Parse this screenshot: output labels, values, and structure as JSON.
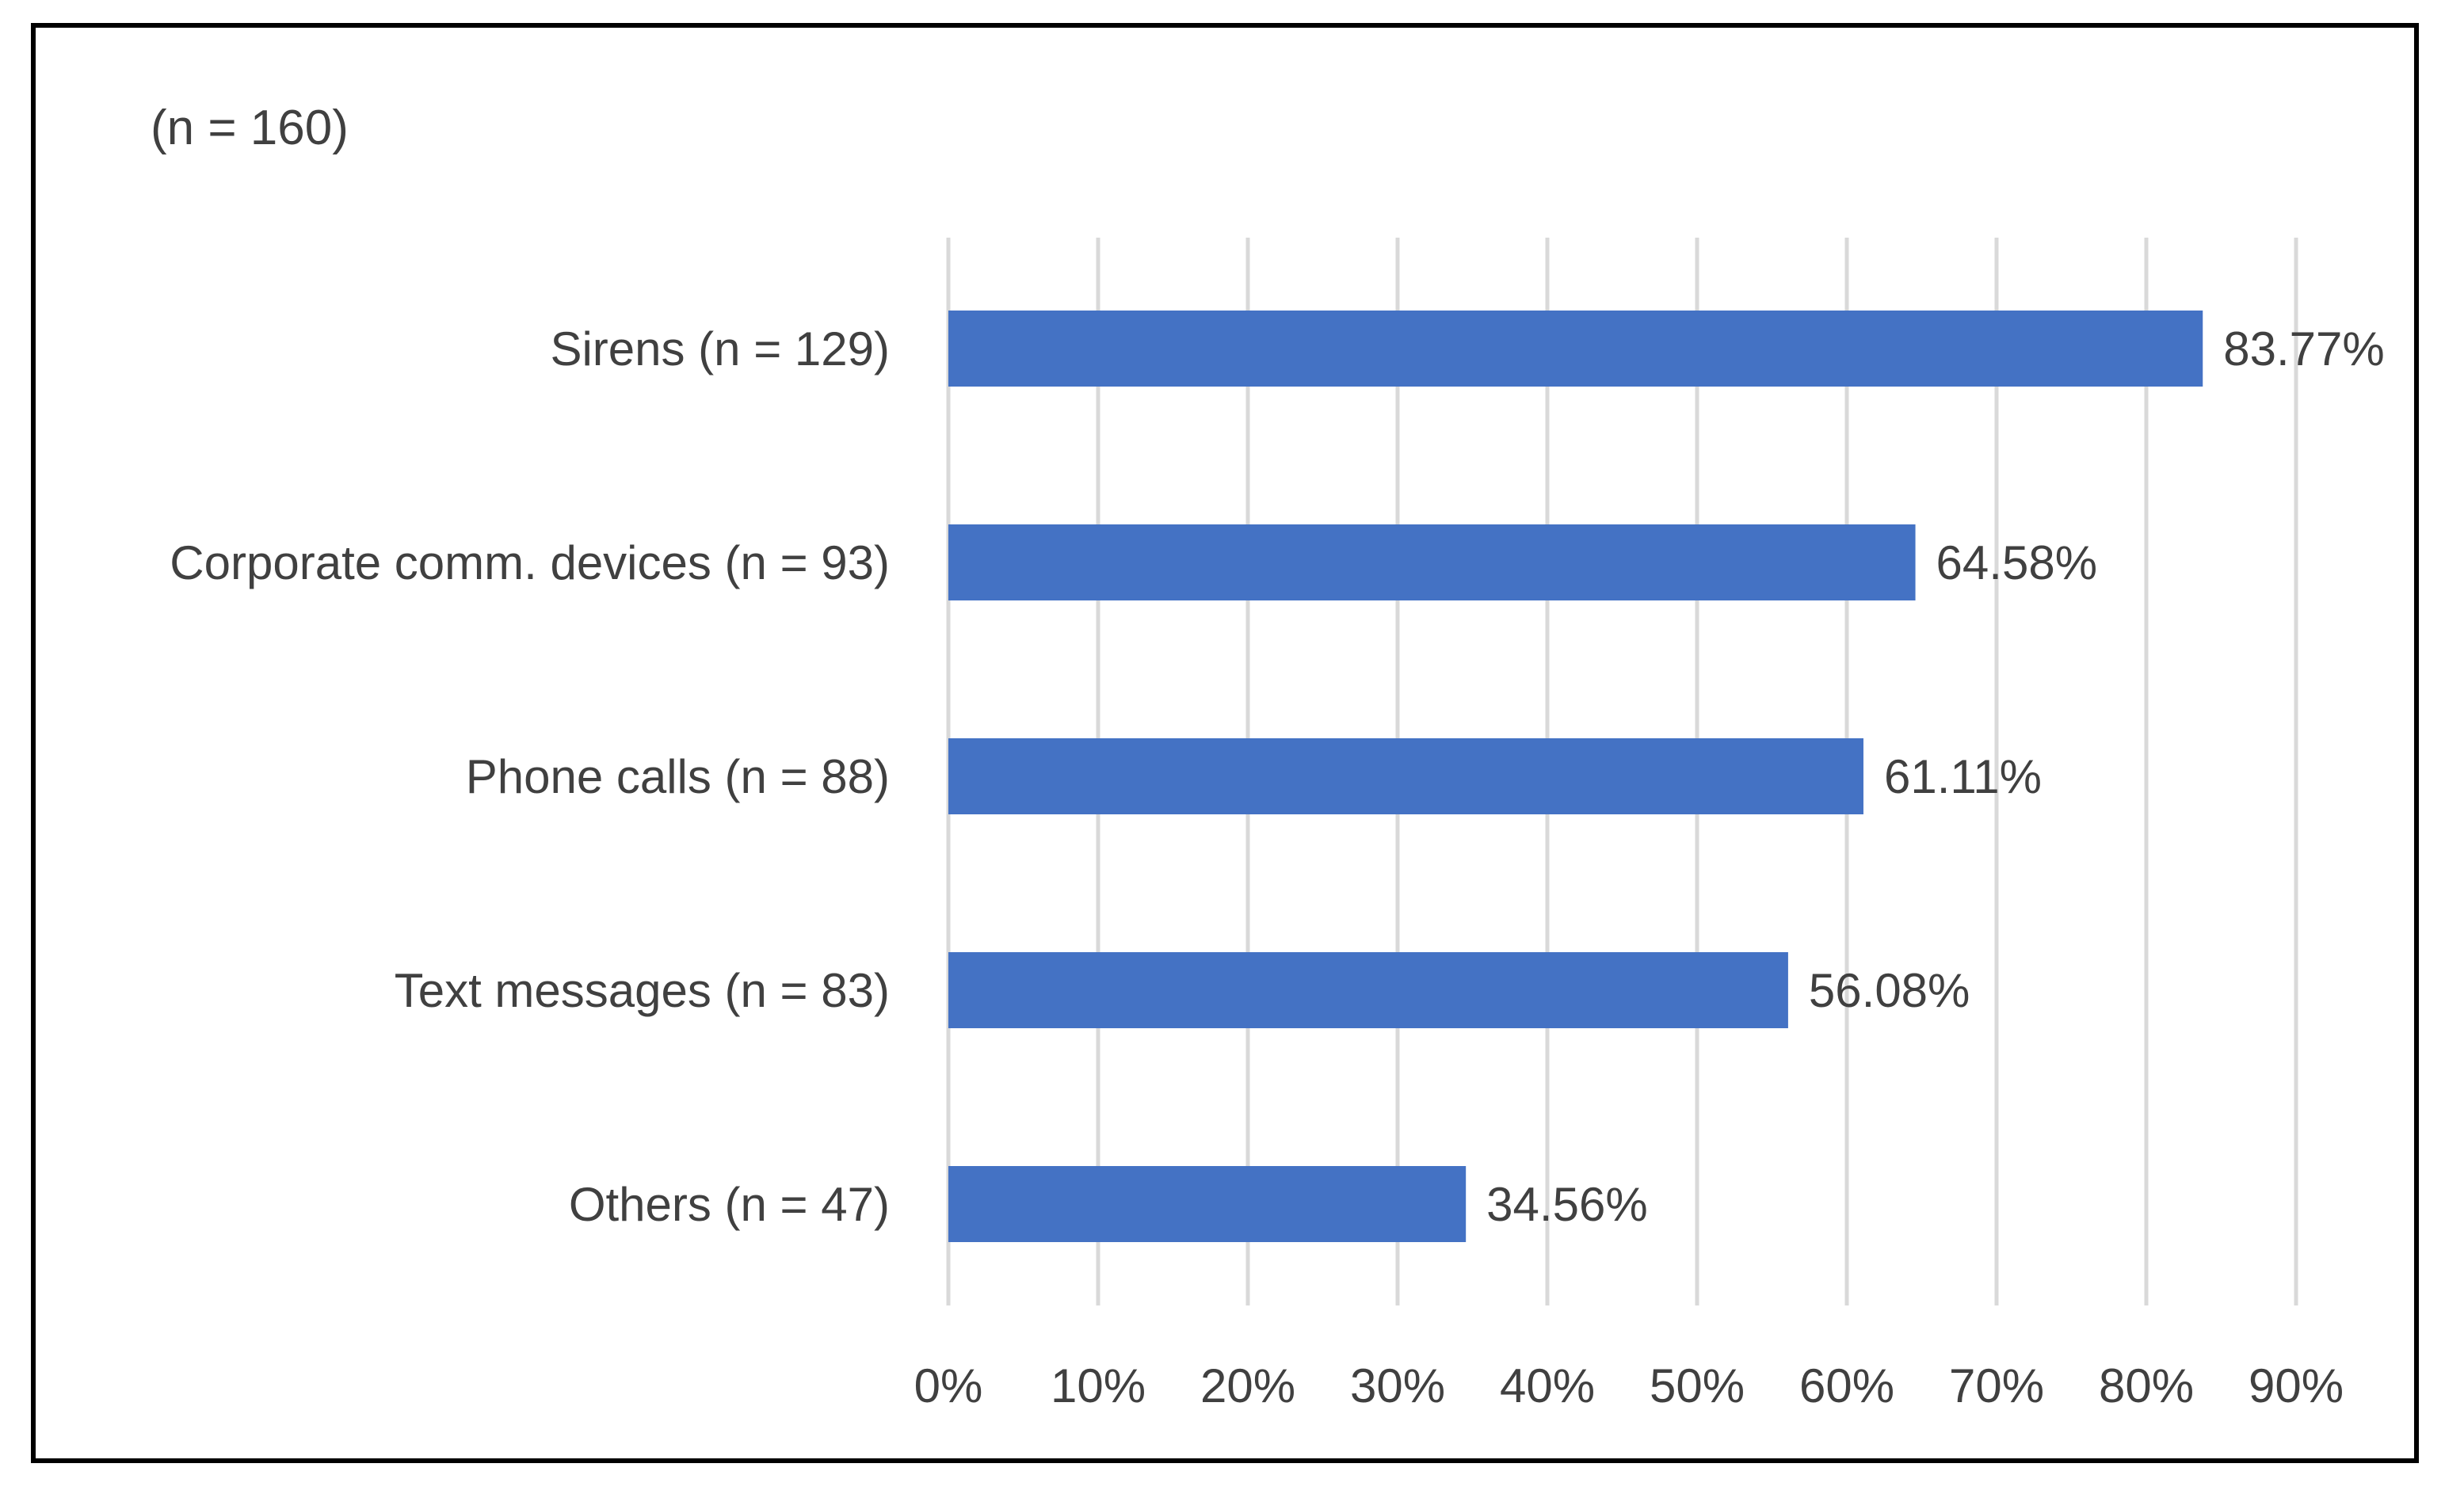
{
  "subtitle": "(n = 160)",
  "chart_data": {
    "type": "bar",
    "orientation": "horizontal",
    "title": "",
    "subtitle": "(n = 160)",
    "xlabel": "",
    "ylabel": "",
    "categories": [
      "Sirens (n = 129)",
      "Corporate comm. devices (n = 93)",
      "Phone calls (n = 88)",
      "Text messages (n = 83)",
      "Others (n = 47)"
    ],
    "values": [
      83.77,
      64.58,
      61.11,
      56.08,
      34.56
    ],
    "data_labels": [
      "83.77%",
      "64.58%",
      "61.11%",
      "56.08%",
      "34.56%"
    ],
    "xlim": [
      0,
      90
    ],
    "x_ticks": [
      0,
      10,
      20,
      30,
      40,
      50,
      60,
      70,
      80,
      90
    ],
    "x_tick_labels": [
      "0%",
      "10%",
      "20%",
      "30%",
      "40%",
      "50%",
      "60%",
      "70%",
      "80%",
      "90%"
    ],
    "grid": "vertical",
    "legend": "none",
    "bar_color": "#4472c4"
  }
}
